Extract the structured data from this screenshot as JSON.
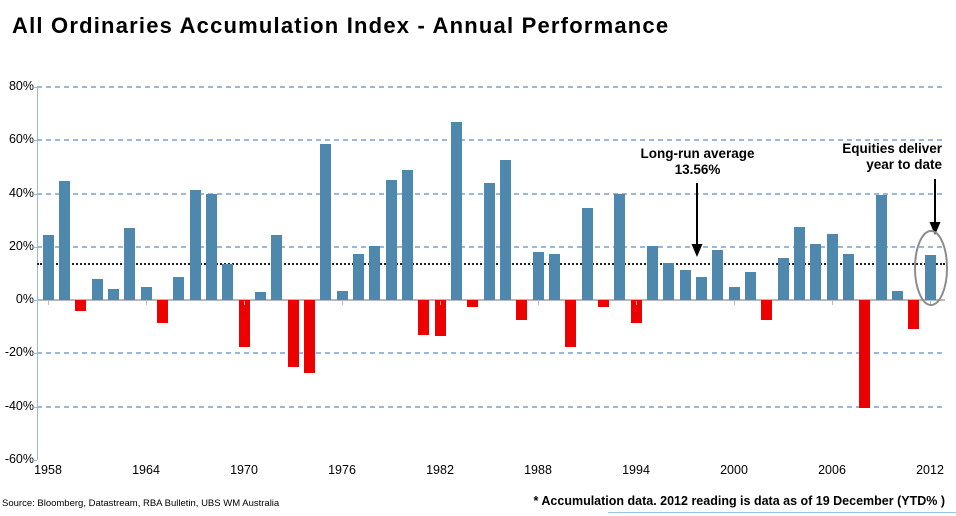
{
  "title": "All Ordinaries Accumulation Index - Annual Performance",
  "chart_data": {
    "type": "bar",
    "title": "All Ordinaries Accumulation Index - Annual Performance",
    "xlabel": "",
    "ylabel": "",
    "ylim": [
      -60,
      80
    ],
    "grid": "horizontal dashed lines every 20%",
    "legend": "none",
    "y_ticks": [
      "80%",
      "60%",
      "40%",
      "20%",
      "0%",
      "-20%",
      "-40%",
      "-60%"
    ],
    "y_tick_values": [
      80,
      60,
      40,
      20,
      0,
      -20,
      -40,
      -60
    ],
    "x_tick_years": [
      1958,
      1964,
      1970,
      1976,
      1982,
      1988,
      1994,
      2000,
      2006,
      2012
    ],
    "average_line": {
      "value": 13.56,
      "label": "Long-run average 13.56%",
      "style": "dotted black"
    },
    "highlight": {
      "year": 2012,
      "marker": "gray ellipse around bar"
    },
    "colors": {
      "positive_bar": "#4e89ad",
      "negative_bar": "#ec0000",
      "gridline": "#9ab8dc",
      "zero_axis": "#b3bac2",
      "average_line": "#20202c",
      "ellipse": "#8c8c8c"
    },
    "series": [
      {
        "name": "Annual performance (%)",
        "years": [
          1958,
          1959,
          1960,
          1961,
          1962,
          1963,
          1964,
          1965,
          1966,
          1967,
          1968,
          1969,
          1970,
          1971,
          1972,
          1973,
          1974,
          1975,
          1976,
          1977,
          1978,
          1979,
          1980,
          1981,
          1982,
          1983,
          1984,
          1985,
          1986,
          1987,
          1988,
          1989,
          1990,
          1991,
          1992,
          1993,
          1994,
          1995,
          1996,
          1997,
          1998,
          1999,
          2000,
          2001,
          2002,
          2003,
          2004,
          2005,
          2006,
          2007,
          2008,
          2009,
          2010,
          2011,
          2012
        ],
        "values": [
          24.5,
          44.8,
          -4,
          8,
          4,
          27,
          5,
          -8.5,
          8.5,
          41.5,
          40,
          13.5,
          -17.5,
          3,
          24.5,
          -25,
          -27.5,
          58.5,
          3.5,
          17.5,
          20.5,
          45,
          49,
          -13,
          -13.5,
          67,
          -2.5,
          44,
          52.5,
          -7.5,
          18,
          17.5,
          -17.5,
          34.5,
          -2.5,
          40,
          -8.5,
          20.5,
          14,
          11.5,
          8.5,
          19,
          5,
          10.5,
          -7.5,
          16,
          27.5,
          21,
          25,
          17.5,
          -40.5,
          39.5,
          3.5,
          -11,
          17
        ]
      }
    ]
  },
  "annotations": {
    "long_run_average": {
      "line1": "Long-run average",
      "line2": "13.56%"
    },
    "equities_ytd": {
      "line1": "Equities deliver",
      "line2": "year to date"
    }
  },
  "footer": {
    "source": "Source: Bloomberg, Datastream, RBA Bulletin, UBS WM Australia",
    "note": "* Accumulation data. 2012 reading is data as of 19 December (YTD% )"
  }
}
